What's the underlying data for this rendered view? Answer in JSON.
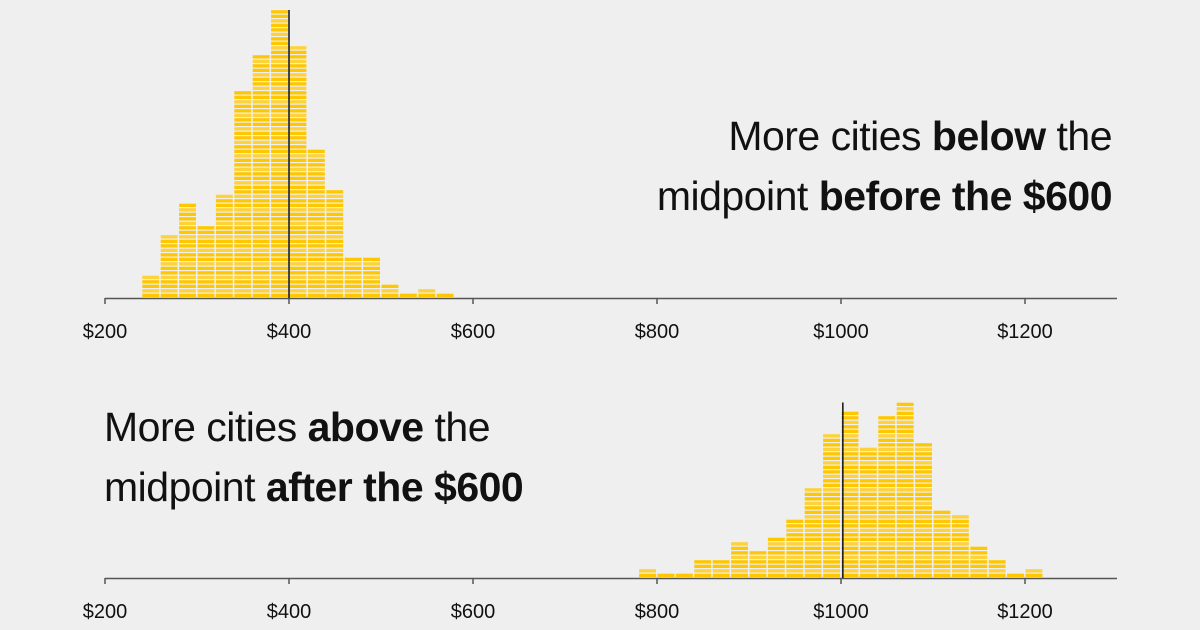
{
  "colors": {
    "background": "#efefef",
    "bar": "#fec700",
    "stripe": "#ffe27a",
    "axis": "#555555",
    "median": "#111111"
  },
  "chart_data": [
    {
      "type": "bar",
      "title_parts": [
        {
          "text": "More cities ",
          "bold": false
        },
        {
          "text": "below",
          "bold": true
        },
        {
          "text": " the",
          "bold": false
        },
        {
          "text": "midpoint ",
          "bold": false,
          "newline": true
        },
        {
          "text": "before the $600",
          "bold": true
        }
      ],
      "bin_width": 20,
      "bin_starts": [
        240,
        260,
        280,
        300,
        320,
        340,
        360,
        380,
        400,
        420,
        440,
        460,
        480,
        500,
        520,
        540,
        560
      ],
      "values": [
        5,
        14,
        21,
        16,
        23,
        46,
        54,
        64,
        56,
        33,
        24,
        9,
        9,
        3,
        1,
        2,
        1
      ],
      "value_unit": "cities",
      "midpoint": 400,
      "xlim": [
        200,
        1300
      ],
      "xticks": [
        200,
        400,
        600,
        800,
        1000,
        1200
      ],
      "xtick_labels": [
        "$200",
        "$400",
        "$600",
        "$800",
        "$1000",
        "$1200"
      ]
    },
    {
      "type": "bar",
      "title_parts": [
        {
          "text": "More cities ",
          "bold": false
        },
        {
          "text": "above",
          "bold": true
        },
        {
          "text": " the",
          "bold": false
        },
        {
          "text": "midpoint ",
          "bold": false,
          "newline": true
        },
        {
          "text": "after the $600",
          "bold": true
        }
      ],
      "bin_width": 20,
      "bin_starts": [
        780,
        800,
        820,
        840,
        860,
        880,
        900,
        920,
        940,
        960,
        980,
        1000,
        1020,
        1040,
        1060,
        1080,
        1100,
        1120,
        1140,
        1160,
        1180,
        1200
      ],
      "values": [
        2,
        1,
        1,
        4,
        4,
        8,
        6,
        9,
        13,
        20,
        32,
        37,
        29,
        36,
        39,
        30,
        15,
        14,
        7,
        4,
        1,
        2
      ],
      "value_unit": "cities",
      "midpoint": 1002,
      "xlim": [
        200,
        1300
      ],
      "xticks": [
        200,
        400,
        600,
        800,
        1000,
        1200
      ],
      "xtick_labels": [
        "$200",
        "$400",
        "$600",
        "$800",
        "$1000",
        "$1200"
      ]
    }
  ]
}
